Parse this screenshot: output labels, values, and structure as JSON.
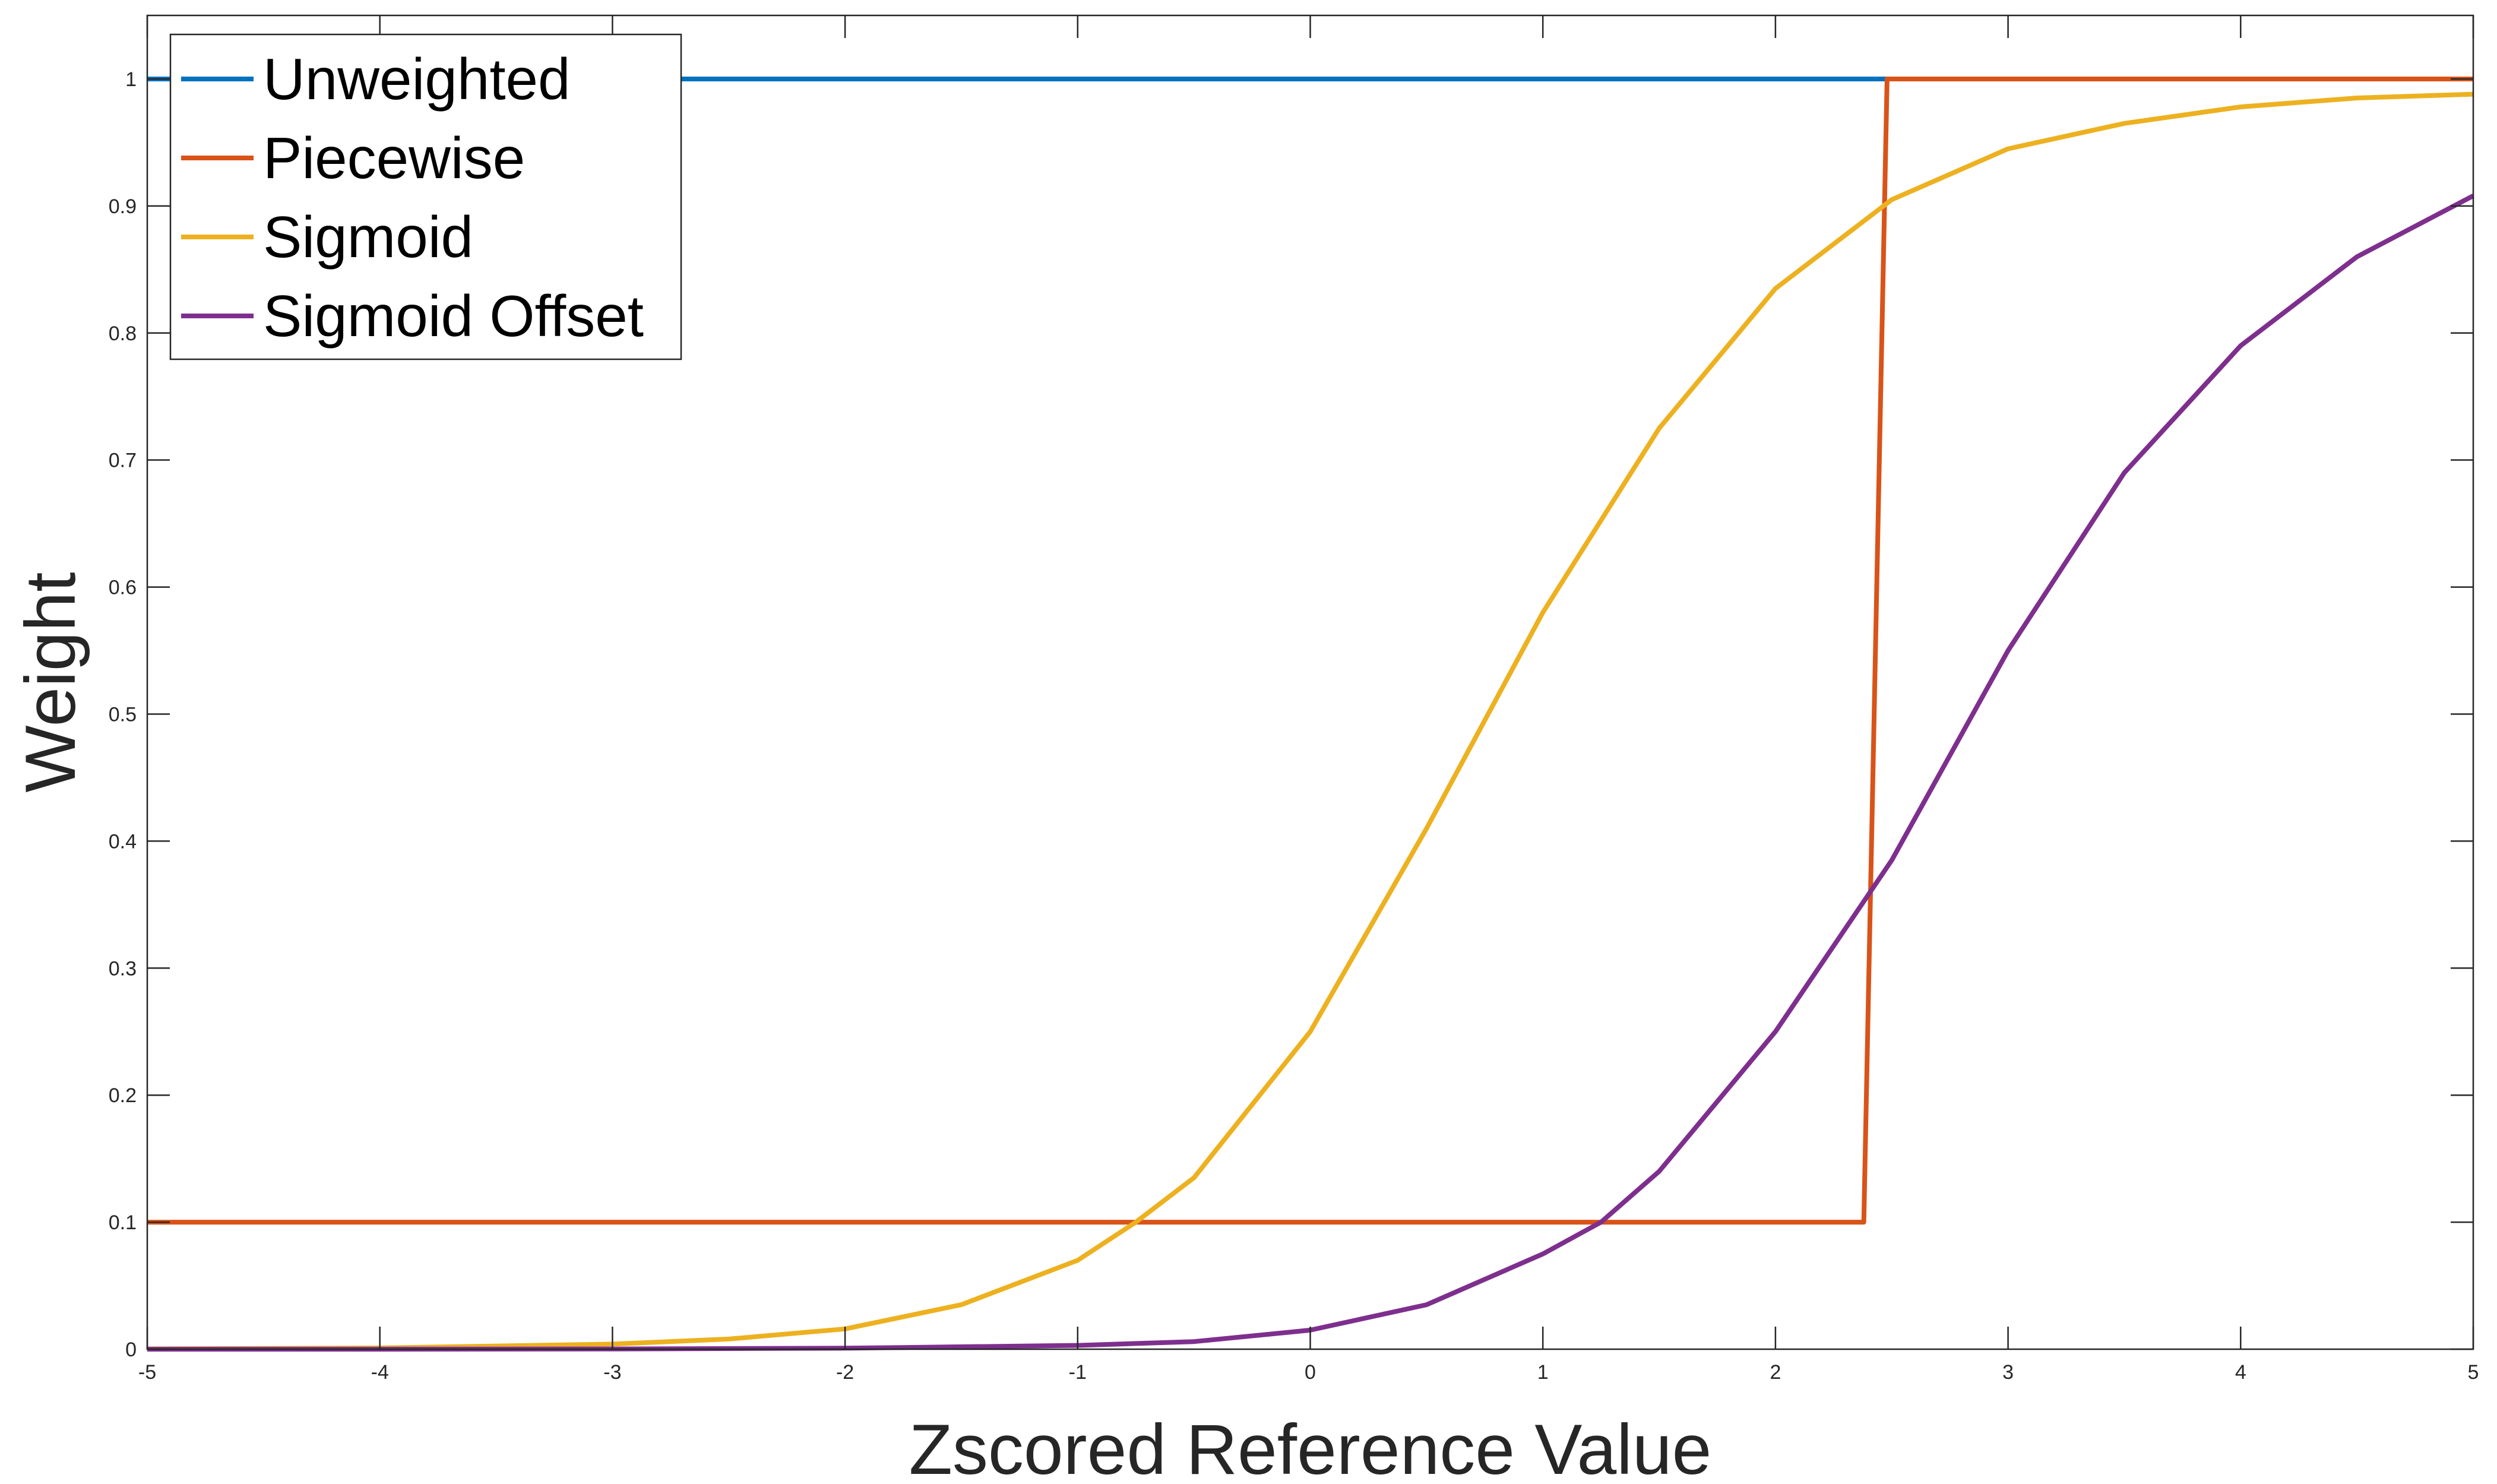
{
  "chart_data": {
    "type": "line",
    "title": "",
    "xlabel": "Zscored Reference Value",
    "ylabel": "Weight",
    "xlim": [
      -5,
      5
    ],
    "ylim": [
      0,
      1.05
    ],
    "xticks": [
      -5,
      -4,
      -3,
      -2,
      -1,
      0,
      1,
      2,
      3,
      4,
      5
    ],
    "yticks": [
      0,
      0.1,
      0.2,
      0.3,
      0.4,
      0.5,
      0.6,
      0.7,
      0.8,
      0.9,
      1
    ],
    "grid": false,
    "legend_position": "top-left",
    "series": [
      {
        "name": "Unweighted",
        "color": "#0072BD",
        "x": [
          -5,
          5
        ],
        "y": [
          1,
          1
        ]
      },
      {
        "name": "Piecewise",
        "color": "#D95319",
        "x": [
          -5,
          2.38,
          2.48,
          5
        ],
        "y": [
          0.1,
          0.1,
          1,
          1
        ]
      },
      {
        "name": "Sigmoid",
        "color": "#EDB120",
        "x": [
          -5,
          -4,
          -3,
          -2.5,
          -2,
          -1.5,
          -1,
          -0.75,
          -0.5,
          0,
          0.5,
          1,
          1.5,
          2,
          2.5,
          3,
          3.5,
          4,
          4.5,
          5
        ],
        "y": [
          0.0003,
          0.001,
          0.004,
          0.008,
          0.016,
          0.035,
          0.07,
          0.1,
          0.135,
          0.25,
          0.41,
          0.58,
          0.725,
          0.835,
          0.905,
          0.945,
          0.965,
          0.978,
          0.985,
          0.988
        ]
      },
      {
        "name": "Sigmoid Offset",
        "color": "#7E2F8E",
        "x": [
          -5,
          -4,
          -3,
          -2,
          -1,
          -0.5,
          0,
          0.5,
          1,
          1.25,
          1.5,
          2,
          2.5,
          3,
          3.5,
          4,
          4.5,
          5
        ],
        "y": [
          0,
          0,
          0.0002,
          0.0008,
          0.003,
          0.006,
          0.015,
          0.035,
          0.075,
          0.1,
          0.14,
          0.25,
          0.385,
          0.55,
          0.69,
          0.79,
          0.86,
          0.908
        ]
      }
    ]
  }
}
